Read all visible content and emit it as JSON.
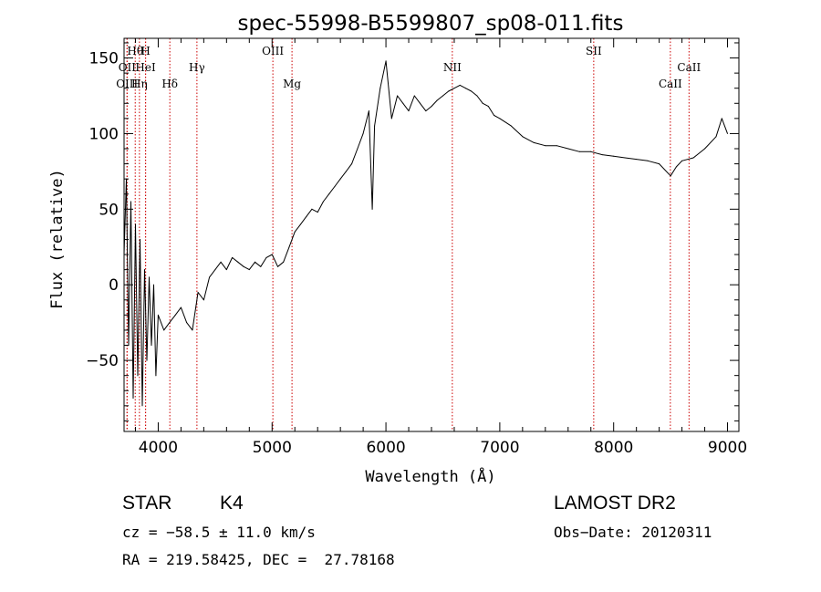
{
  "chart_data": {
    "type": "line",
    "title": "spec-55998-B5599807_sp08-011.fits",
    "xlabel": "Wavelength (Å)",
    "ylabel": "Flux (relative)",
    "xlim": [
      3700,
      9100
    ],
    "ylim": [
      -97,
      163
    ],
    "xticks": [
      4000,
      5000,
      6000,
      7000,
      8000,
      9000
    ],
    "yticks": [
      -50,
      0,
      50,
      100,
      150
    ],
    "xtick_labels": [
      "4000",
      "5000",
      "6000",
      "7000",
      "8000",
      "9000"
    ],
    "ytick_labels": [
      "−50",
      "0",
      "50",
      "100",
      "150"
    ],
    "grid": false,
    "line_color": "#000000",
    "spectral_line_color": "#cc0000",
    "spectral_lines": [
      {
        "name": "Hθ",
        "wavelength": 3798,
        "label_level": 1
      },
      {
        "name": "H",
        "wavelength": 3889,
        "label_level": 1
      },
      {
        "name": "OII",
        "wavelength": 3727,
        "label_level": 2
      },
      {
        "name": "HeI",
        "wavelength": 3889,
        "label_level": 2
      },
      {
        "name": "OIII",
        "wavelength": 3726,
        "label_level": 3
      },
      {
        "name": "Hη",
        "wavelength": 3835,
        "label_level": 3
      },
      {
        "name": "Hδ",
        "wavelength": 4102,
        "label_level": 3
      },
      {
        "name": "Hγ",
        "wavelength": 4340,
        "label_level": 2
      },
      {
        "name": "OIII",
        "wavelength": 5007,
        "label_level": 1
      },
      {
        "name": "Mg",
        "wavelength": 5175,
        "label_level": 3
      },
      {
        "name": "NII",
        "wavelength": 6583,
        "label_level": 2
      },
      {
        "name": "SII",
        "wavelength": 7825,
        "label_level": 1
      },
      {
        "name": "CaII",
        "wavelength": 8498,
        "label_level": 3
      },
      {
        "name": "CaII",
        "wavelength": 8662,
        "label_level": 2
      }
    ],
    "series": [
      {
        "wavelength": [
          3700,
          3720,
          3740,
          3760,
          3780,
          3800,
          3820,
          3840,
          3860,
          3880,
          3900,
          3920,
          3940,
          3960,
          3980,
          4000,
          4050,
          4100,
          4150,
          4200,
          4250,
          4300,
          4350,
          4400,
          4450,
          4500,
          4550,
          4600,
          4650,
          4700,
          4750,
          4800,
          4850,
          4900,
          4950,
          5000,
          5050,
          5100,
          5150,
          5200,
          5250,
          5300,
          5350,
          5400,
          5450,
          5500,
          5550,
          5600,
          5650,
          5700,
          5750,
          5800,
          5850,
          5880,
          5900,
          5950,
          6000,
          6050,
          6100,
          6150,
          6200,
          6250,
          6300,
          6350,
          6400,
          6450,
          6500,
          6550,
          6600,
          6650,
          6700,
          6750,
          6800,
          6850,
          6900,
          6950,
          7000,
          7100,
          7200,
          7300,
          7400,
          7500,
          7600,
          7700,
          7800,
          7900,
          8000,
          8100,
          8200,
          8300,
          8400,
          8500,
          8550,
          8600,
          8700,
          8800,
          8900,
          8950,
          9000
        ],
        "flux": [
          20,
          70,
          -40,
          55,
          -75,
          40,
          -60,
          30,
          -80,
          10,
          -50,
          5,
          -40,
          0,
          -60,
          -20,
          -30,
          -25,
          -20,
          -15,
          -25,
          -30,
          -5,
          -10,
          5,
          10,
          15,
          10,
          18,
          15,
          12,
          10,
          15,
          12,
          18,
          20,
          12,
          15,
          25,
          35,
          40,
          45,
          50,
          48,
          55,
          60,
          65,
          70,
          75,
          80,
          90,
          100,
          115,
          50,
          105,
          130,
          148,
          110,
          125,
          120,
          115,
          125,
          120,
          115,
          118,
          122,
          125,
          128,
          130,
          132,
          130,
          128,
          125,
          120,
          118,
          112,
          110,
          105,
          98,
          94,
          92,
          92,
          90,
          88,
          88,
          86,
          85,
          84,
          83,
          82,
          80,
          72,
          78,
          82,
          84,
          90,
          98,
          110,
          100
        ]
      }
    ]
  },
  "info": {
    "object_type": "STAR",
    "subclass": "K4",
    "survey": "LAMOST DR2",
    "cz": "cz = −58.5 ± 11.0 km/s",
    "obs_date": "Obs−Date: 20120311",
    "coords": "RA = 219.58425, DEC =  27.78168"
  }
}
